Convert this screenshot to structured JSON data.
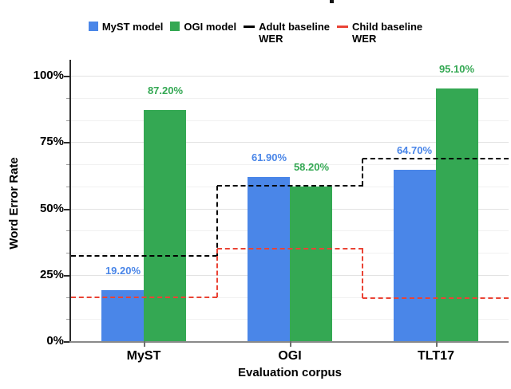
{
  "legend": {
    "items": [
      {
        "label": "MyST model",
        "lines": [
          "MyST model"
        ],
        "swatch": "square",
        "color": "#4a86e8"
      },
      {
        "label": "OGI model",
        "lines": [
          "OGI model"
        ],
        "swatch": "square",
        "color": "#34a853"
      },
      {
        "label": "Adult baseline WER",
        "lines": [
          "Adult baseline",
          "WER"
        ],
        "swatch": "dash",
        "color": "#000000"
      },
      {
        "label": "Child baseline WER",
        "lines": [
          "Child baseline",
          "WER"
        ],
        "swatch": "dash",
        "color": "#ea4335"
      }
    ]
  },
  "axes": {
    "y_title": "Word Error Rate",
    "x_title": "Evaluation corpus",
    "y_ticks": [
      "100%",
      "75%",
      "50%",
      "25%",
      "0%"
    ],
    "y_tick_values": [
      100,
      75,
      50,
      25,
      0
    ],
    "x_ticks": [
      "MyST",
      "OGI",
      "TLT17"
    ]
  },
  "chart_data": {
    "type": "bar",
    "title": "",
    "categories": [
      "MyST",
      "OGI",
      "TLT17"
    ],
    "series": [
      {
        "name": "MyST model",
        "color": "#4a86e8",
        "values": [
          19.2,
          61.9,
          64.7
        ],
        "value_labels": [
          "19.20%",
          "61.90%",
          "64.70%"
        ]
      },
      {
        "name": "OGI model",
        "color": "#34a853",
        "values": [
          87.2,
          58.2,
          95.1
        ],
        "value_labels": [
          "87.20%",
          "58.20%",
          "95.10%"
        ]
      }
    ],
    "step_lines": [
      {
        "name": "Adult baseline WER",
        "color": "#000000",
        "style": "dashed",
        "values": [
          32.0,
          58.5,
          68.8
        ]
      },
      {
        "name": "Child baseline WER",
        "color": "#ea4335",
        "style": "dashed",
        "values": [
          16.4,
          34.8,
          16.3
        ]
      }
    ],
    "xlabel": "Evaluation corpus",
    "ylabel": "Word Error Rate",
    "ylim": [
      0,
      100
    ],
    "y_major_step": 25,
    "y_minor_divisions_per_major": 3,
    "grid": true,
    "legend_position": "top"
  }
}
